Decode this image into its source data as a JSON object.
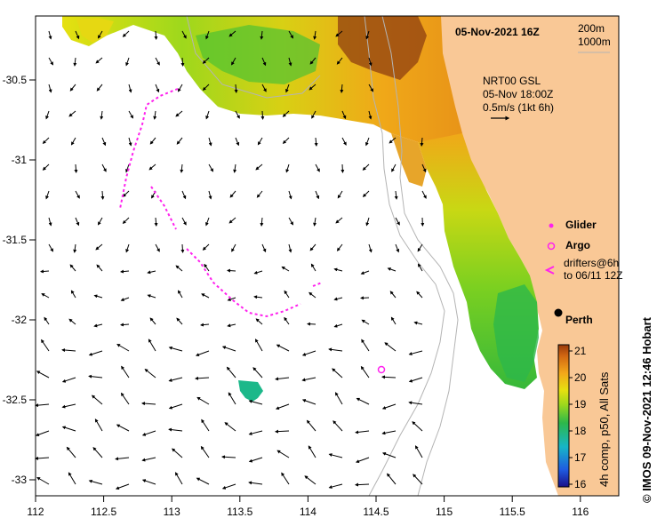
{
  "title": "05-Nov-2021 16Z",
  "bathy_legend": [
    "200m",
    "1000m"
  ],
  "current_legend": {
    "lines": [
      "NRT00 GSL",
      "05-Nov 18:00Z",
      "0.5m/s (1kt 6h)"
    ]
  },
  "axes": {
    "lon_ticks": [
      "112",
      "112.5",
      "113",
      "113.5",
      "114",
      "114.5",
      "115",
      "115.5",
      "116"
    ],
    "lat_ticks": [
      "-30.5",
      "-31",
      "-31.5",
      "-32",
      "-32.5",
      "-33"
    ]
  },
  "place": "Perth",
  "legend_items": [
    {
      "symbol": "dot",
      "label": "Glider"
    },
    {
      "symbol": "circle",
      "label": "Argo"
    },
    {
      "symbol": "arrow",
      "label": "drifters@6h",
      "sublabel": "to 06/11 12Z"
    }
  ],
  "colorbar": {
    "ticks": [
      "16",
      "17",
      "18",
      "19",
      "20",
      "21"
    ],
    "label": "4h comp, p50, All Sats"
  },
  "credit": "© IMOS 09-Nov-2021 12:46 Hobart",
  "colors": {
    "land": "#f9c896",
    "ocean": "#ffffff",
    "drifter": "#ff22ee",
    "bathy": "#b4b4b4"
  }
}
